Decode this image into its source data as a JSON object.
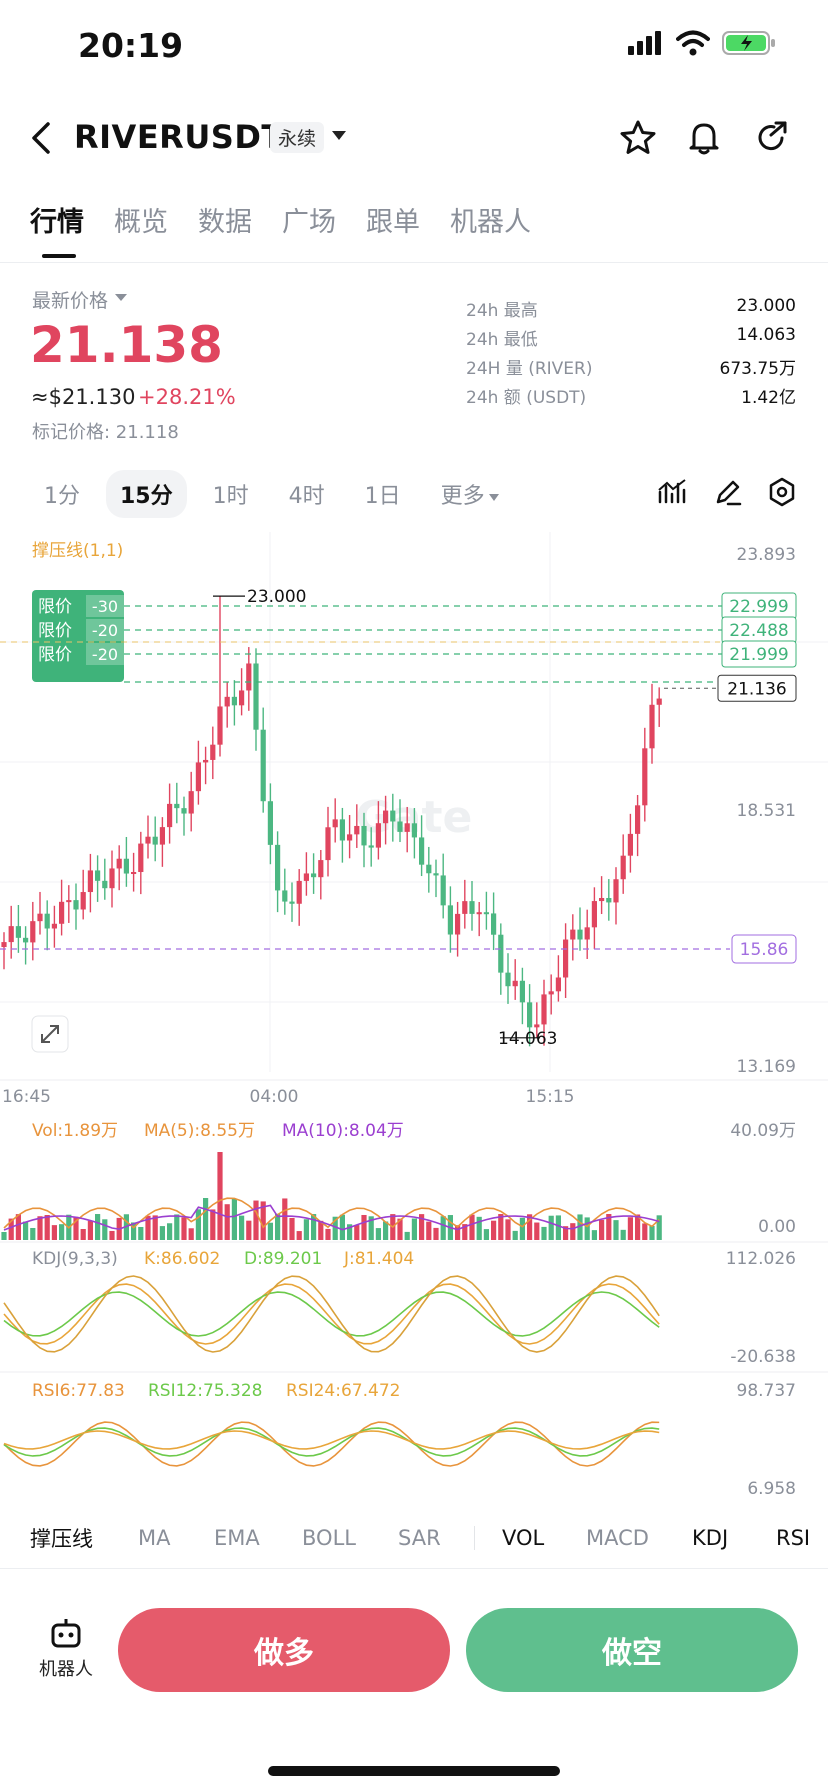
{
  "status": {
    "time": "20:19"
  },
  "header": {
    "pair": "RIVERUSDT",
    "contract_type": "永续"
  },
  "tabs": [
    {
      "label": "行情",
      "active": true
    },
    {
      "label": "概览"
    },
    {
      "label": "数据"
    },
    {
      "label": "广场"
    },
    {
      "label": "跟单"
    },
    {
      "label": "机器人"
    }
  ],
  "price": {
    "label": "最新价格",
    "last": "21.138",
    "usd": "≈$21.130",
    "change": "+28.21%",
    "mark": "标记价格: 21.118"
  },
  "stats": [
    {
      "k": "24h  最高",
      "v": "23.000"
    },
    {
      "k": "24h  最低",
      "v": "14.063"
    },
    {
      "k": "24H  量 (RIVER)",
      "v": "673.75万"
    },
    {
      "k": "24h  额 (USDT)",
      "v": "1.42亿"
    }
  ],
  "intervals": [
    {
      "label": "1分"
    },
    {
      "label": "15分",
      "active": true
    },
    {
      "label": "1时"
    },
    {
      "label": "4时"
    },
    {
      "label": "1日"
    },
    {
      "label": "更多"
    }
  ],
  "chart": {
    "indicator_title": "撑压线(1,1)",
    "y_ticks": [
      "23.893",
      "18.531",
      "15.86",
      "13.169"
    ],
    "x_ticks": [
      "16:45",
      "04:00",
      "15:15"
    ],
    "high_label": "23.000",
    "low_label": "14.063",
    "current_price_label": "21.136",
    "support_label": "15.86",
    "watermark": "Gate",
    "orders": [
      {
        "label": "限价",
        "qty": "-30",
        "price": "22.999"
      },
      {
        "label": "限价",
        "qty": "-20",
        "price": "22.488"
      },
      {
        "label": "限价",
        "qty": "-20",
        "price": "21.999"
      }
    ],
    "colors": {
      "up": "#e0455f",
      "down": "#4cb782",
      "ma5": "#e8943c",
      "ma10": "#9b3fd0",
      "support": "#a26ee0",
      "order": "#3fb37a"
    }
  },
  "volume": {
    "vol": "Vol:1.89万",
    "ma5": "MA(5):8.55万",
    "ma10": "MA(10):8.04万",
    "max": "40.09万",
    "min": "0.00"
  },
  "kdj": {
    "title": "KDJ(9,3,3)",
    "k": "K:86.602",
    "d": "D:89.201",
    "j": "J:81.404",
    "max": "112.026",
    "min": "-20.638"
  },
  "rsi": {
    "rsi6": "RSI6:77.83",
    "rsi12": "RSI12:75.328",
    "rsi24": "RSI24:67.472",
    "max": "98.737",
    "min": "6.958"
  },
  "indicator_tabs": [
    {
      "label": "撑压线",
      "on": true
    },
    {
      "label": "MA"
    },
    {
      "label": "EMA"
    },
    {
      "label": "BOLL"
    },
    {
      "label": "SAR"
    },
    {
      "label": "VOL",
      "on": true
    },
    {
      "label": "MACD"
    },
    {
      "label": "KDJ",
      "on": true
    },
    {
      "label": "RSI",
      "on": true
    }
  ],
  "actions": {
    "robot": "机器人",
    "long": "做多",
    "short": "做空"
  }
}
